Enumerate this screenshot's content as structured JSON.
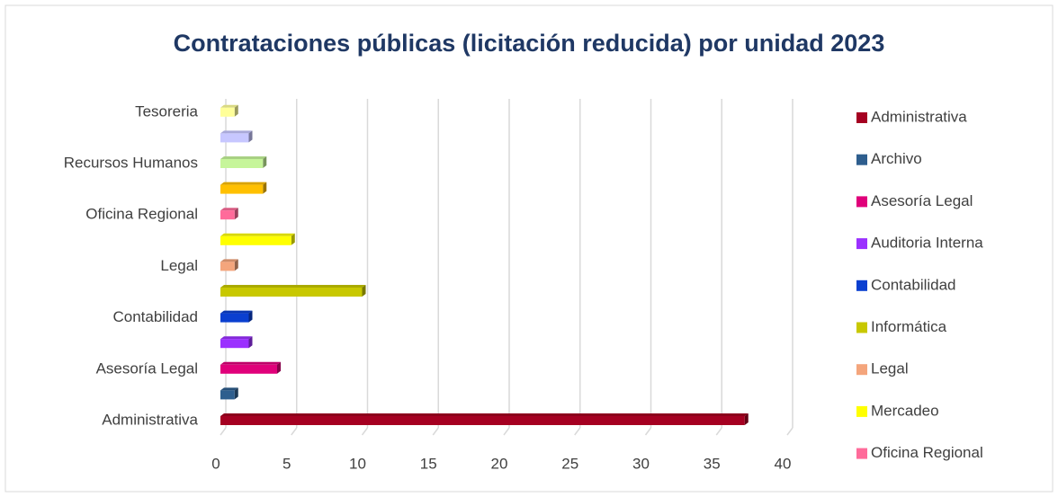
{
  "chart_data": {
    "type": "bar",
    "orientation": "horizontal",
    "title": "Contrataciones públicas (licitación reducida) por unidad 2023",
    "categories": [
      "Administrativa",
      null,
      "Asesoría Legal",
      null,
      "Contabilidad",
      null,
      "Legal",
      null,
      "Oficina Regional",
      null,
      "Recursos Humanos",
      null,
      "Tesoreria"
    ],
    "values": [
      37,
      1,
      4,
      2,
      2,
      10,
      1,
      5,
      1,
      3,
      3,
      2,
      1
    ],
    "colors": [
      "#a50021",
      "#2e5e8e",
      "#e0007a",
      "#9b30ff",
      "#0a3fd0",
      "#c8c800",
      "#f4a57c",
      "#ffff00",
      "#ff6b9a",
      "#ffc000",
      "#c6f59a",
      "#c7c7ff",
      "#ffff99"
    ],
    "legend": [
      "Administrativa",
      "Archivo",
      "Asesoría Legal",
      "Auditoria Interna",
      "Contabilidad",
      "Informática",
      "Legal",
      "Mercadeo",
      "Oficina Regional"
    ],
    "xlim": [
      0,
      40
    ],
    "xticks": [
      0,
      5,
      10,
      15,
      20,
      25,
      30,
      35,
      40
    ],
    "grid": true
  }
}
